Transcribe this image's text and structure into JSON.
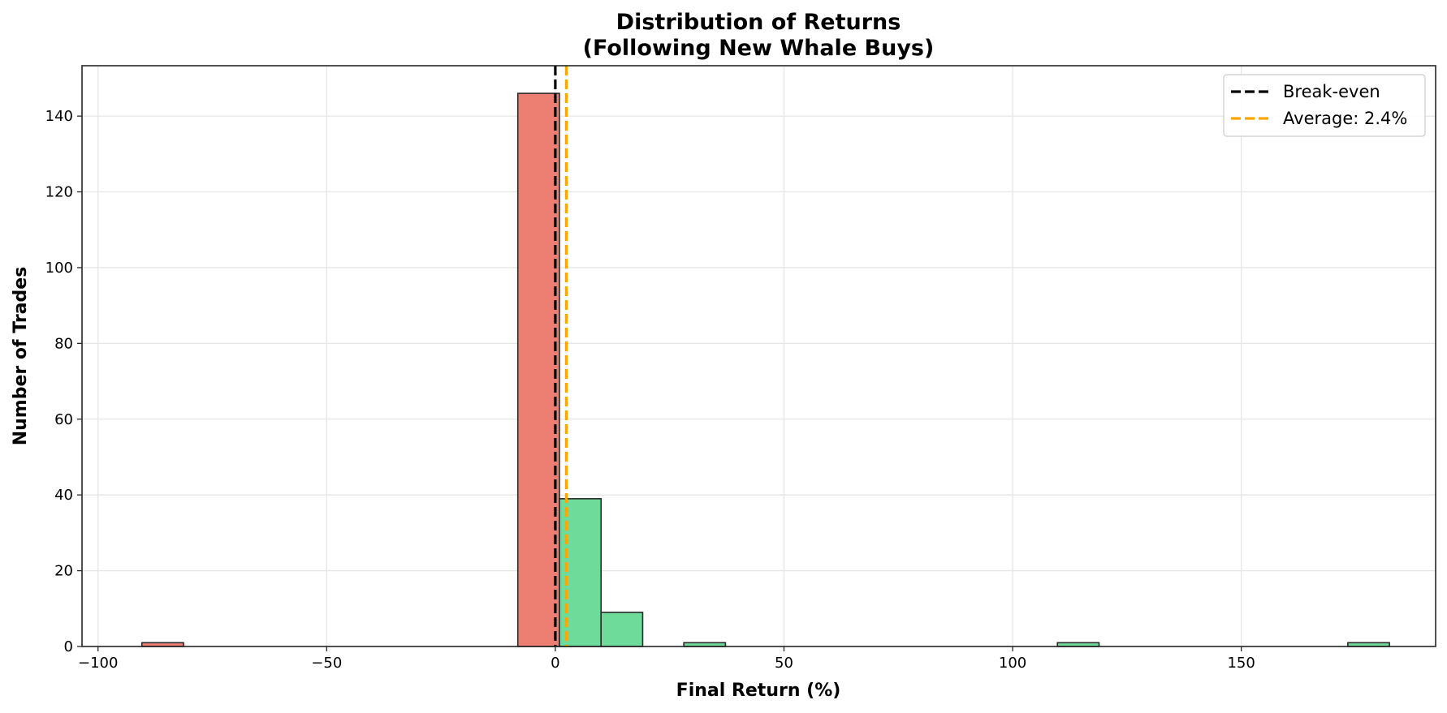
{
  "chart_data": {
    "type": "bar",
    "subtype": "histogram",
    "title": "Distribution of Returns\n(Following New Whale Buys)",
    "title_lines": [
      "Distribution of Returns",
      "(Following New Whale Buys)"
    ],
    "xlabel": "Final Return (%)",
    "ylabel": "Number of Trades",
    "xlim": [
      -103.5,
      192.5
    ],
    "ylim": [
      0,
      153.3
    ],
    "xticks": [
      -100,
      -50,
      0,
      50,
      100,
      150
    ],
    "xtick_labels": [
      "−100",
      "−50",
      "0",
      "50",
      "100",
      "150"
    ],
    "yticks": [
      0,
      20,
      40,
      60,
      80,
      100,
      120,
      140
    ],
    "ytick_labels": [
      "0",
      "20",
      "40",
      "60",
      "80",
      "100",
      "120",
      "140"
    ],
    "grid": true,
    "bins": [
      {
        "x0": -90.4,
        "x1": -81.3,
        "count": 1,
        "color": "#ec7f72",
        "sign": "loss"
      },
      {
        "x0": -8.2,
        "x1": 0.9,
        "count": 146,
        "color": "#ec7f72",
        "sign": "loss"
      },
      {
        "x0": 0.9,
        "x1": 10.0,
        "count": 39,
        "color": "#6fdb9b",
        "sign": "gain"
      },
      {
        "x0": 10.0,
        "x1": 19.1,
        "count": 9,
        "color": "#6fdb9b",
        "sign": "gain"
      },
      {
        "x0": 28.1,
        "x1": 37.2,
        "count": 1,
        "color": "#6fdb9b",
        "sign": "gain"
      },
      {
        "x0": 109.8,
        "x1": 118.9,
        "count": 1,
        "color": "#6fdb9b",
        "sign": "gain"
      },
      {
        "x0": 173.3,
        "x1": 182.4,
        "count": 1,
        "color": "#6fdb9b",
        "sign": "gain"
      }
    ],
    "reference_lines": [
      {
        "label": "Break-even",
        "x": 0,
        "color": "#000000",
        "style": "dashed"
      },
      {
        "label": "Average: 2.4%",
        "x": 2.4,
        "color": "#ffa500",
        "style": "dashed"
      }
    ],
    "legend": {
      "position": "upper right",
      "entries": [
        "Break-even",
        "Average: 2.4%"
      ]
    },
    "colors": {
      "loss": "#ec7f72",
      "gain": "#6fdb9b",
      "edge": "#2a2a2a",
      "break_even": "#000000",
      "average": "#ffa500",
      "grid": "#e6e6e6"
    }
  }
}
